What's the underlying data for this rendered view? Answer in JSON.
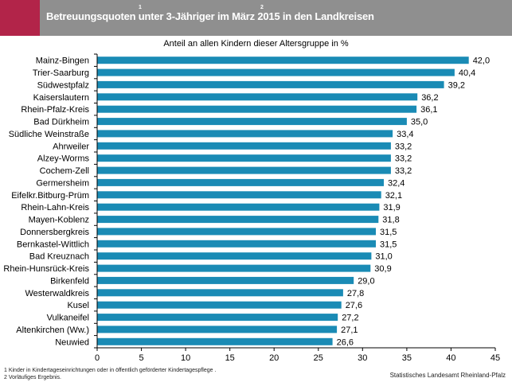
{
  "header": {
    "title": "Betreuungsquoten unter 3-Jähriger im März 2015 in den Landkreisen",
    "sup1": "1",
    "sup2": "2"
  },
  "chart_data": {
    "type": "bar",
    "orientation": "horizontal",
    "title": "Betreuungsquoten unter 3-Jähriger im März 2015 in den Landkreisen",
    "subtitle": "Anteil an allen Kindern dieser Altersgruppe in %",
    "categories": [
      "Mainz-Bingen",
      "Trier-Saarburg",
      "Südwestpfalz",
      "Kaiserslautern",
      "Rhein-Pfalz-Kreis",
      "Bad Dürkheim",
      "Südliche Weinstraße",
      "Ahrweiler",
      "Alzey-Worms",
      "Cochem-Zell",
      "Germersheim",
      "Eifelkr.Bitburg-Prüm",
      "Rhein-Lahn-Kreis",
      "Mayen-Koblenz",
      "Donnersbergkreis",
      "Bernkastel-Wittlich",
      "Bad Kreuznach",
      "Rhein-Hunsrück-Kreis",
      "Birkenfeld",
      "Westerwaldkreis",
      "Kusel",
      "Vulkaneifel",
      "Altenkirchen (Ww.)",
      "Neuwied"
    ],
    "values": [
      42.0,
      40.4,
      39.2,
      36.2,
      36.1,
      35.0,
      33.4,
      33.2,
      33.2,
      33.2,
      32.4,
      32.1,
      31.9,
      31.8,
      31.5,
      31.5,
      31.0,
      30.9,
      29.0,
      27.8,
      27.6,
      27.2,
      27.1,
      26.6
    ],
    "value_labels": [
      "42,0",
      "40,4",
      "39,2",
      "36,2",
      "36,1",
      "35,0",
      "33,4",
      "33,2",
      "33,2",
      "33,2",
      "32,4",
      "32,1",
      "31,9",
      "31,8",
      "31,5",
      "31,5",
      "31,0",
      "30,9",
      "29,0",
      "27,8",
      "27,6",
      "27,2",
      "27,1",
      "26,6"
    ],
    "xlim": [
      0,
      45
    ],
    "xticks": [
      "0",
      "5",
      "10",
      "15",
      "20",
      "25",
      "30",
      "35",
      "40",
      "45"
    ],
    "bar_color": "#1a8bb5",
    "grid": false
  },
  "footnotes": [
    "1 Kinder in Kindertageseinrichtungen oder in öffentlich geförderter Kindertagespflege .",
    "2 Vorläufiges Ergebnis."
  ],
  "source": "Statistisches Landesamt Rheinland-Pfalz",
  "colors": {
    "title_bar": "#8f8f8f",
    "accent": "#b22449"
  }
}
